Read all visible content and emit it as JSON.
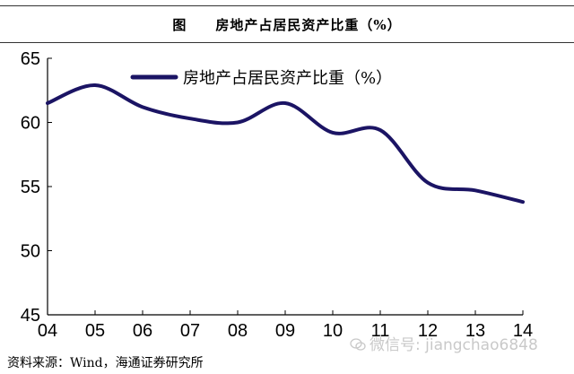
{
  "figure": {
    "title": "图　　房地产占居民资产比重（%）",
    "source": "资料来源：Wind，海通证券研究所",
    "watermark": "微信号: jiangchao6848"
  },
  "chart_data": {
    "type": "line",
    "x": [
      "04",
      "05",
      "06",
      "07",
      "08",
      "09",
      "10",
      "11",
      "12",
      "13",
      "14"
    ],
    "series": [
      {
        "name": "房地产占居民资产比重（%）",
        "values": [
          61.5,
          62.9,
          61.2,
          60.3,
          60.0,
          61.5,
          59.2,
          59.4,
          55.3,
          54.7,
          53.8
        ],
        "color": "#1b1464"
      }
    ],
    "ylim": [
      45,
      65
    ],
    "yticks": [
      45,
      50,
      55,
      60,
      65
    ],
    "grid": false,
    "legend": "top-left-inside"
  }
}
